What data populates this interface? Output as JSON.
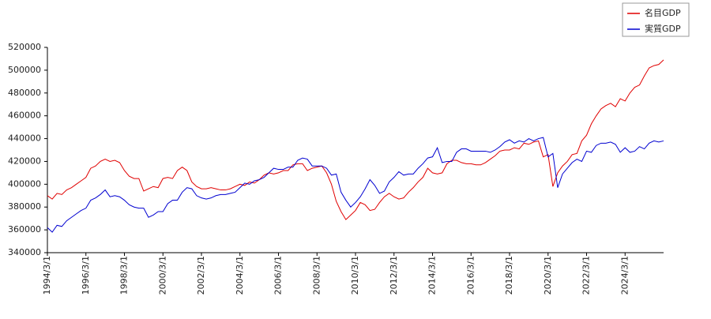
{
  "chart_data": {
    "type": "line",
    "categories": [
      "1994/3/1",
      null,
      null,
      null,
      null,
      null,
      null,
      null,
      "1996/3/1",
      null,
      null,
      null,
      null,
      null,
      null,
      null,
      "1998/3/1",
      null,
      null,
      null,
      null,
      null,
      null,
      null,
      "2000/3/1",
      null,
      null,
      null,
      null,
      null,
      null,
      null,
      "2002/3/1",
      null,
      null,
      null,
      null,
      null,
      null,
      null,
      "2004/3/1",
      null,
      null,
      null,
      null,
      null,
      null,
      null,
      "2006/3/1",
      null,
      null,
      null,
      null,
      null,
      null,
      null,
      "2008/3/1",
      null,
      null,
      null,
      null,
      null,
      null,
      null,
      "2010/3/1",
      null,
      null,
      null,
      null,
      null,
      null,
      null,
      "2012/3/1",
      null,
      null,
      null,
      null,
      null,
      null,
      null,
      "2014/3/1",
      null,
      null,
      null,
      null,
      null,
      null,
      null,
      "2016/3/1",
      null,
      null,
      null,
      null,
      null,
      null,
      null,
      "2018/3/1",
      null,
      null,
      null,
      null,
      null,
      null,
      null,
      "2020/3/1",
      null,
      null,
      null,
      null,
      null,
      null,
      null,
      "2022/3/1",
      null,
      null,
      null,
      null,
      null,
      null,
      null,
      "2024/3/1",
      null,
      null,
      null,
      null,
      null,
      null,
      null,
      null
    ],
    "series": [
      {
        "name": "名目GDP",
        "color": "#e00000",
        "values": [
          390000,
          387000,
          392000,
          391000,
          395000,
          397000,
          400000,
          403000,
          406000,
          414000,
          416000,
          420000,
          422000,
          420000,
          421000,
          419000,
          412000,
          407000,
          405000,
          405000,
          394000,
          396000,
          398000,
          397000,
          405000,
          406000,
          405000,
          412000,
          415000,
          412000,
          402000,
          398000,
          396000,
          396000,
          397000,
          396000,
          395000,
          395000,
          396000,
          398000,
          400000,
          399000,
          402000,
          401000,
          404000,
          408000,
          410000,
          409000,
          410000,
          412000,
          412000,
          417000,
          418000,
          418000,
          412000,
          414000,
          415000,
          416000,
          410000,
          400000,
          385000,
          376000,
          369000,
          373000,
          377000,
          384000,
          382000,
          377000,
          378000,
          384000,
          389000,
          392000,
          389000,
          387000,
          388000,
          393000,
          397000,
          402000,
          406000,
          414000,
          410000,
          409000,
          410000,
          418000,
          421000,
          421000,
          419000,
          418000,
          418000,
          417000,
          417000,
          419000,
          422000,
          425000,
          429000,
          430000,
          430000,
          432000,
          431000,
          436000,
          435000,
          437000,
          438000,
          424000,
          426000,
          398000,
          410000,
          416000,
          420000,
          426000,
          427000,
          438000,
          443000,
          453000,
          460000,
          466000,
          469000,
          471000,
          468000,
          475000,
          473000,
          480000,
          485000,
          487000,
          495000,
          502000,
          504000,
          505000,
          509000
        ]
      },
      {
        "name": "実質GDP",
        "color": "#0000d0",
        "values": [
          362000,
          358000,
          364000,
          363000,
          368000,
          371000,
          374000,
          377000,
          379000,
          386000,
          388000,
          391000,
          395000,
          389000,
          390000,
          389000,
          386000,
          382000,
          380000,
          379000,
          379000,
          371000,
          373000,
          376000,
          376000,
          383000,
          386000,
          386000,
          393000,
          397000,
          396000,
          390000,
          388000,
          387000,
          388000,
          390000,
          391000,
          391000,
          392000,
          393000,
          397000,
          401000,
          400000,
          403000,
          404000,
          406000,
          410000,
          414000,
          413000,
          413000,
          415000,
          415000,
          421000,
          423000,
          422000,
          416000,
          416000,
          416000,
          414000,
          408000,
          409000,
          393000,
          386000,
          380000,
          384000,
          389000,
          396000,
          404000,
          399000,
          392000,
          394000,
          402000,
          406000,
          411000,
          408000,
          409000,
          409000,
          414000,
          418000,
          423000,
          424000,
          432000,
          419000,
          420000,
          420000,
          428000,
          431000,
          431000,
          429000,
          429000,
          429000,
          429000,
          428000,
          430000,
          433000,
          437000,
          439000,
          436000,
          438000,
          437000,
          440000,
          438000,
          440000,
          441000,
          424000,
          427000,
          397000,
          409000,
          414000,
          419000,
          422000,
          420000,
          429000,
          428000,
          434000,
          436000,
          436000,
          437000,
          435000,
          428000,
          432000,
          428000,
          429000,
          433000,
          431000,
          436000,
          438000,
          437000,
          438000
        ]
      }
    ],
    "ylim": [
      340000,
      520000
    ],
    "yticks": [
      340000,
      360000,
      380000,
      400000,
      420000,
      440000,
      460000,
      480000,
      500000,
      520000
    ],
    "grid": false,
    "legend": "upper right"
  }
}
